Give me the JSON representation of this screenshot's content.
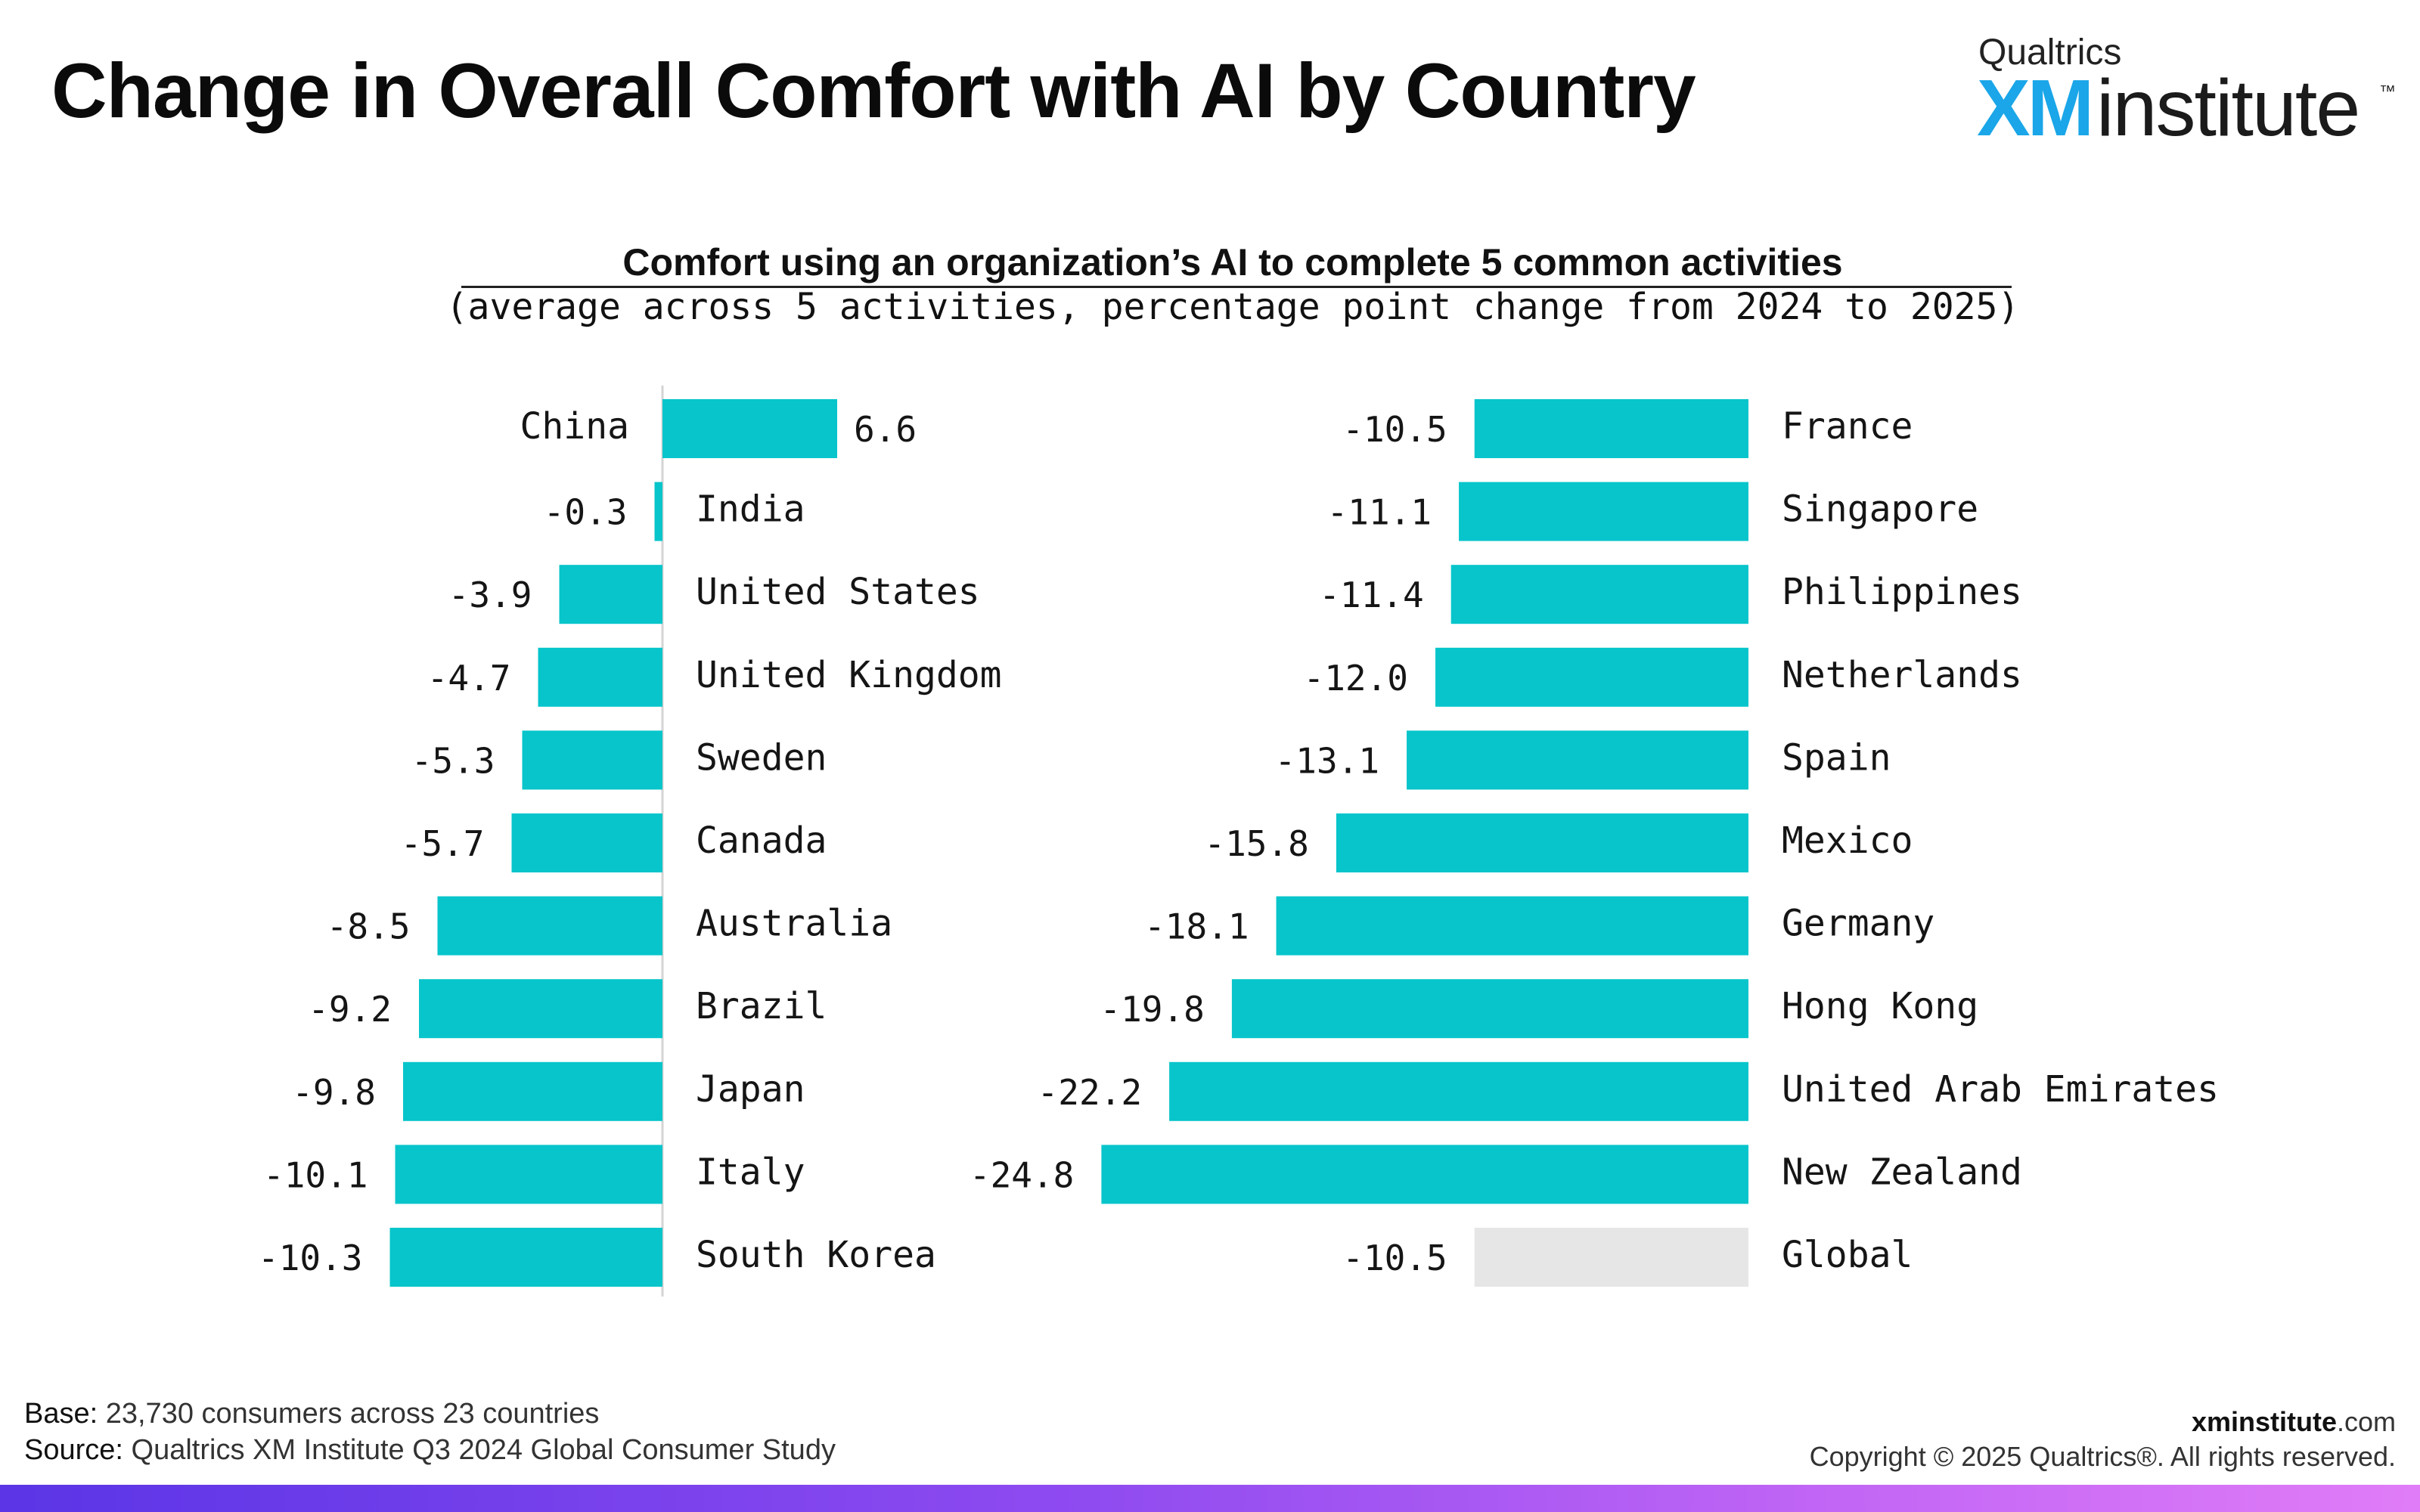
{
  "page": {
    "title": "Change in Overall Comfort with AI by Country",
    "logo": {
      "top": "Qualtrics",
      "xm": "XM",
      "word": "institute",
      "tm": "™"
    }
  },
  "chart_heading": "Comfort using an organization’s AI to complete 5 common activities",
  "chart_subheading": "(average across 5 activities, percentage point change from 2024 to 2025)",
  "chart_data": [
    {
      "type": "bar",
      "orientation": "horizontal",
      "categories": [
        "China",
        "India",
        "United States",
        "United Kingdom",
        "Sweden",
        "Canada",
        "Australia",
        "Brazil",
        "Japan",
        "Italy",
        "South Korea"
      ],
      "values": [
        6.6,
        -0.3,
        -3.9,
        -4.7,
        -5.3,
        -5.7,
        -8.5,
        -9.2,
        -9.8,
        -10.1,
        -10.3
      ],
      "labels": [
        "6.6",
        "-0.3",
        "-3.9",
        "-4.7",
        "-5.3",
        "-5.7",
        "-8.5",
        "-9.2",
        "-9.8",
        "-10.1",
        "-10.3"
      ],
      "color": "#07c5cb"
    },
    {
      "type": "bar",
      "orientation": "horizontal",
      "categories": [
        "France",
        "Singapore",
        "Philippines",
        "Netherlands",
        "Spain",
        "Mexico",
        "Germany",
        "Hong Kong",
        "United Arab Emirates",
        "New Zealand",
        "Global"
      ],
      "values": [
        -10.5,
        -11.1,
        -11.4,
        -12.0,
        -13.1,
        -15.8,
        -18.1,
        -19.8,
        -22.2,
        -24.8,
        -10.5
      ],
      "labels": [
        "-10.5",
        "-11.1",
        "-11.4",
        "-12.0",
        "-13.1",
        "-15.8",
        "-18.1",
        "-19.8",
        "-22.2",
        "-24.8",
        "-10.5"
      ],
      "color": "#07c5cb",
      "highlight_color": "#e6e6e6",
      "highlight_category": "Global"
    }
  ],
  "footer": {
    "base_label": "Base:",
    "base_text": " 23,730 consumers across 23 countries",
    "source_label": "Source:",
    "source_text": " Qualtrics XM Institute Q3 2024 Global Consumer Study",
    "site_bold": "xminstitute",
    "site_rest": ".com",
    "copyright": "Copyright © 2025 Qualtrics®. All rights reserved."
  }
}
